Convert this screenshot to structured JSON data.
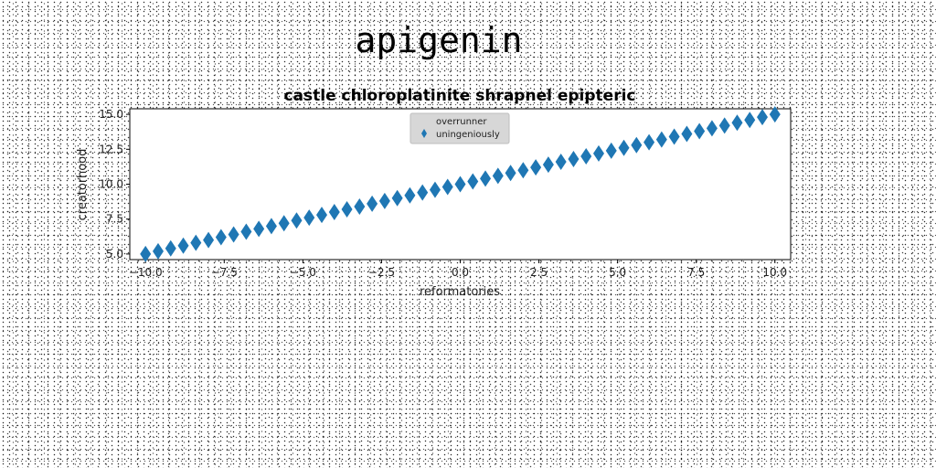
{
  "page": {
    "title": "apigenin"
  },
  "chart_data": {
    "type": "scatter",
    "title": "castle chloroplatinite shrapnel epipteric",
    "xlabel": "reformatories",
    "ylabel": "creatorhood",
    "xlim": [
      -10.5,
      10.5
    ],
    "ylim": [
      4.6,
      15.4
    ],
    "xticks": [
      -10.0,
      -7.5,
      -5.0,
      -2.5,
      0.0,
      2.5,
      5.0,
      7.5,
      10.0
    ],
    "xtick_labels": [
      "−10.0",
      "−7.5",
      "−5.0",
      "−2.5",
      "0.0",
      "2.5",
      "5.0",
      "7.5",
      "10.0"
    ],
    "yticks": [
      5.0,
      7.5,
      10.0,
      12.5,
      15.0
    ],
    "ytick_labels": [
      "5.0",
      "7.5",
      "10.0",
      "12.5",
      "15.0"
    ],
    "grid": false,
    "legend_position": "upper center",
    "series": [
      {
        "name": "overrunner",
        "marker": "none",
        "color": "#1f77b4",
        "x": [],
        "y": []
      },
      {
        "name": "uningeniously",
        "marker": "diamond",
        "color": "#1f77b4",
        "x": [
          -10.0,
          -9.6,
          -9.2,
          -8.8,
          -8.4,
          -8.0,
          -7.6,
          -7.2,
          -6.8,
          -6.4,
          -6.0,
          -5.6,
          -5.2,
          -4.8,
          -4.4,
          -4.0,
          -3.6,
          -3.2,
          -2.8,
          -2.4,
          -2.0,
          -1.6,
          -1.2,
          -0.8,
          -0.4,
          0.0,
          0.4,
          0.8,
          1.2,
          1.6,
          2.0,
          2.4,
          2.8,
          3.2,
          3.6,
          4.0,
          4.4,
          4.8,
          5.2,
          5.6,
          6.0,
          6.4,
          6.8,
          7.2,
          7.6,
          8.0,
          8.4,
          8.8,
          9.2,
          9.6,
          10.0
        ],
        "y": [
          5.0,
          5.2,
          5.4,
          5.6,
          5.8,
          6.0,
          6.2,
          6.4,
          6.6,
          6.8,
          7.0,
          7.2,
          7.4,
          7.6,
          7.8,
          8.0,
          8.2,
          8.4,
          8.6,
          8.8,
          9.0,
          9.2,
          9.4,
          9.6,
          9.8,
          10.0,
          10.2,
          10.4,
          10.6,
          10.8,
          11.0,
          11.2,
          11.4,
          11.6,
          11.8,
          12.0,
          12.2,
          12.4,
          12.6,
          12.8,
          13.0,
          13.2,
          13.4,
          13.6,
          13.8,
          14.0,
          14.2,
          14.4,
          14.6,
          14.8,
          15.0
        ]
      }
    ]
  }
}
